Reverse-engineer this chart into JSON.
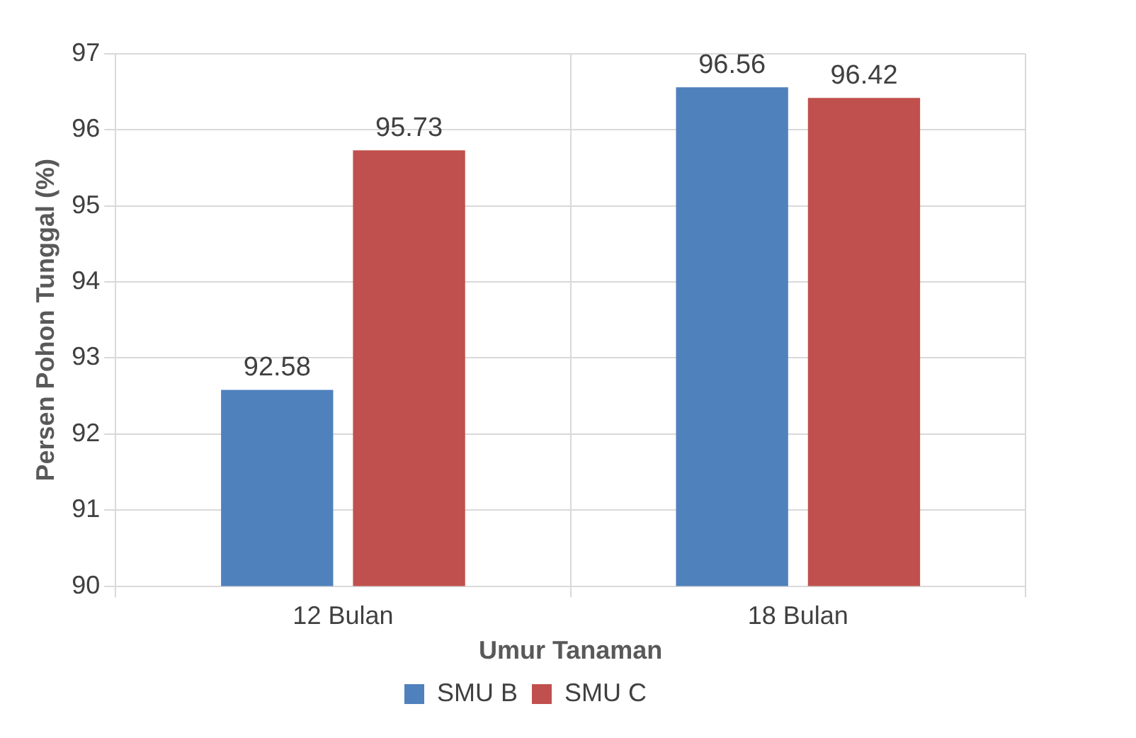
{
  "chart_data": {
    "type": "bar",
    "xlabel": "Umur Tanaman",
    "ylabel": "Persen Pohon Tunggal (%)",
    "categories": [
      "12 Bulan",
      "18 Bulan"
    ],
    "series": [
      {
        "name": "SMU B",
        "color": "#4f81bd",
        "values": [
          92.58,
          96.56
        ]
      },
      {
        "name": "SMU C",
        "color": "#c0504d",
        "values": [
          95.73,
          96.42
        ]
      }
    ],
    "ylim": [
      90,
      97
    ],
    "yticks": [
      90,
      91,
      92,
      93,
      94,
      95,
      96,
      97
    ],
    "grid": true,
    "legend": "bottom",
    "data_labels": true
  }
}
